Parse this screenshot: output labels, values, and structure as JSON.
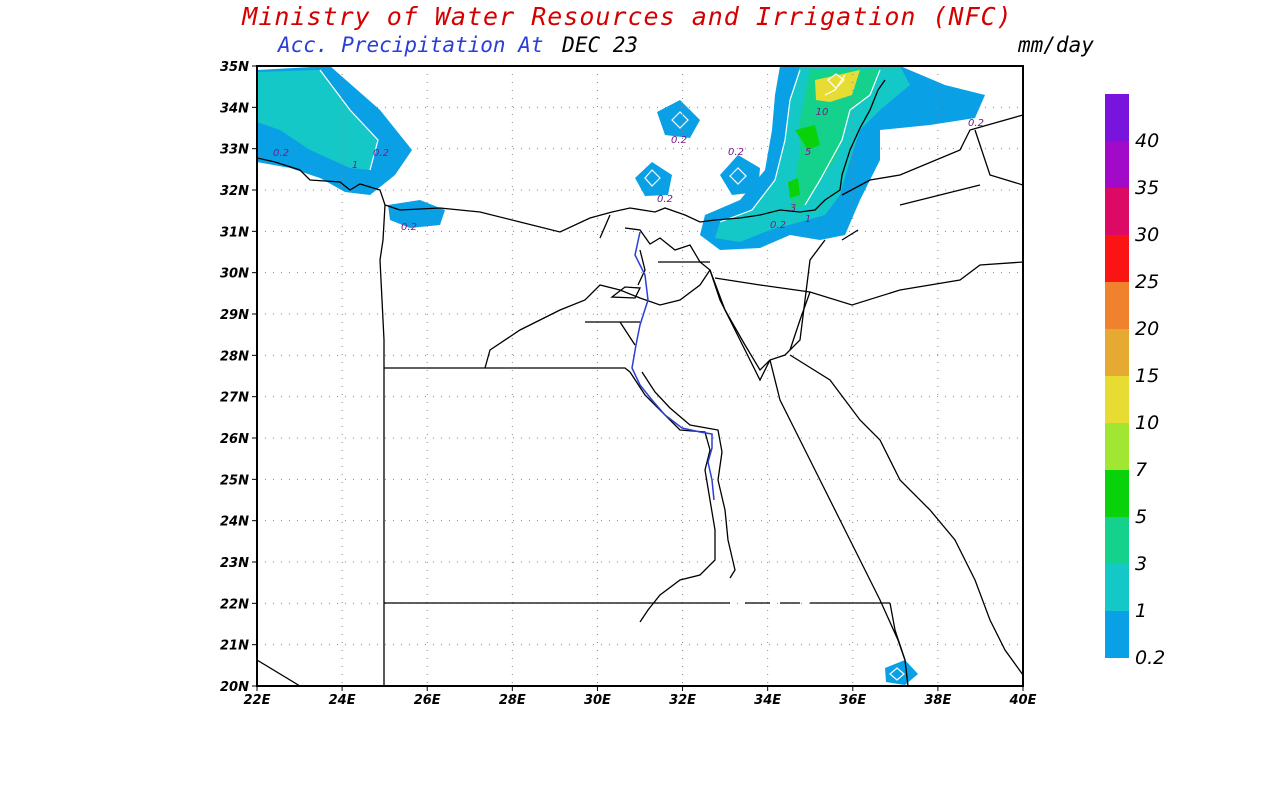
{
  "header": {
    "title": "Ministry of Water Resources and Irrigation (NFC)",
    "subtitle_prefix": "Acc. Precipitation  At",
    "subtitle_date": "DEC 23",
    "units": "mm/day"
  },
  "map": {
    "lon_ticks": [
      "22E",
      "24E",
      "26E",
      "28E",
      "30E",
      "32E",
      "34E",
      "36E",
      "38E",
      "40E"
    ],
    "lat_ticks": [
      "35N",
      "34N",
      "33N",
      "32N",
      "31N",
      "30N",
      "29N",
      "28N",
      "27N",
      "26N",
      "25N",
      "24N",
      "23N",
      "22N",
      "21N",
      "20N"
    ],
    "contour_labels": [
      "0.2",
      "1",
      "0.2",
      "0.2",
      "0.2",
      "0.2",
      "0.2",
      "0.2",
      "0.2",
      "10",
      "5",
      "3",
      "1",
      "0.2",
      "0.2"
    ],
    "colors": {
      "boundary": "#000000",
      "nile": "#2a3fd6",
      "grid": "#888888"
    }
  },
  "colorbar": {
    "levels": [
      "0.2",
      "1",
      "3",
      "5",
      "7",
      "10",
      "15",
      "20",
      "25",
      "30",
      "35",
      "40"
    ],
    "colors": [
      "#0aa0e6",
      "#14c8c8",
      "#14d28c",
      "#0ad20a",
      "#a0e632",
      "#e6dc32",
      "#e6aa32",
      "#f0822d",
      "#fa1414",
      "#dc0a64",
      "#a00ac8",
      "#7814dc"
    ]
  }
}
